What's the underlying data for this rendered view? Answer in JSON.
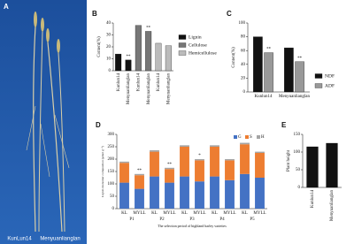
{
  "photo": {
    "label": "A",
    "captions": [
      "KunLun14",
      "Menyuanlianglan"
    ]
  },
  "chart_data": [
    {
      "label": "B",
      "type": "bar",
      "ylabel": "Content(%)",
      "categories": [
        "Kunlun14",
        "Menyuanlianglan",
        "Kunlun14",
        "Menyuanlianglan",
        "Kunlun14",
        "Menyuanlianglan"
      ],
      "series": [
        {
          "name": "Lignin",
          "color": "#111111",
          "values": [
            14,
            9,
            null,
            null,
            null,
            null
          ]
        },
        {
          "name": "Cellulose",
          "color": "#777777",
          "values": [
            null,
            null,
            38,
            33,
            null,
            null
          ]
        },
        {
          "name": "Hemicellulose",
          "color": "#bbbbbb",
          "values": [
            null,
            null,
            null,
            null,
            23,
            21
          ]
        }
      ],
      "ylim": [
        0,
        40
      ],
      "yticks": [
        0,
        10,
        20,
        30,
        40
      ],
      "legend": "right",
      "annotations": [
        "**",
        "**"
      ]
    },
    {
      "label": "C",
      "type": "bar",
      "ylabel": "Content(%)",
      "categories": [
        "Kunlun14",
        "Menyuanlianglan"
      ],
      "series": [
        {
          "name": "NDF",
          "color": "#111111",
          "values": [
            80,
            64
          ]
        },
        {
          "name": "ADF",
          "color": "#999999",
          "values": [
            57,
            44
          ]
        }
      ],
      "ylim": [
        0,
        100
      ],
      "yticks": [
        0,
        20,
        40,
        60,
        80,
        100
      ],
      "legend": "right",
      "annotations": [
        "**",
        "**"
      ]
    },
    {
      "label": "D",
      "type": "stacked_bar",
      "ylabel": "Lignin monomer composition (μmol g⁻¹)",
      "xlabel": "The selection period of highland barley varieties",
      "categories": [
        "KL",
        "MYLL",
        "KL",
        "MYLL",
        "KL",
        "MYLL",
        "KL",
        "MYLL",
        "KL",
        "MYLL"
      ],
      "groups": [
        "P1",
        "P2",
        "P3",
        "P4",
        "P5"
      ],
      "series": [
        {
          "name": "G",
          "color": "#4472c4",
          "values": [
            105,
            80,
            130,
            105,
            130,
            110,
            130,
            115,
            140,
            125
          ]
        },
        {
          "name": "S",
          "color": "#ed7d31",
          "values": [
            80,
            55,
            100,
            55,
            120,
            85,
            120,
            80,
            120,
            100
          ]
        },
        {
          "name": "H",
          "color": "#a5a5a5",
          "values": [
            5,
            5,
            6,
            5,
            6,
            5,
            6,
            5,
            6,
            5
          ]
        }
      ],
      "ylim": [
        0,
        300
      ],
      "yticks": [
        0,
        50,
        100,
        150,
        200,
        250,
        300
      ],
      "legend": "upper right",
      "annotations": [
        "**",
        "**",
        "*"
      ]
    },
    {
      "label": "E",
      "type": "bar",
      "ylabel": "Plant height",
      "categories": [
        "Kunlun14",
        "Menyuanlianglan"
      ],
      "series": [
        {
          "name": "Plant height",
          "color": "#111111",
          "values": [
            115,
            125
          ]
        }
      ],
      "ylim": [
        0,
        150
      ],
      "yticks": [
        0,
        50,
        100,
        150
      ],
      "legend": "none",
      "annotations": []
    }
  ]
}
